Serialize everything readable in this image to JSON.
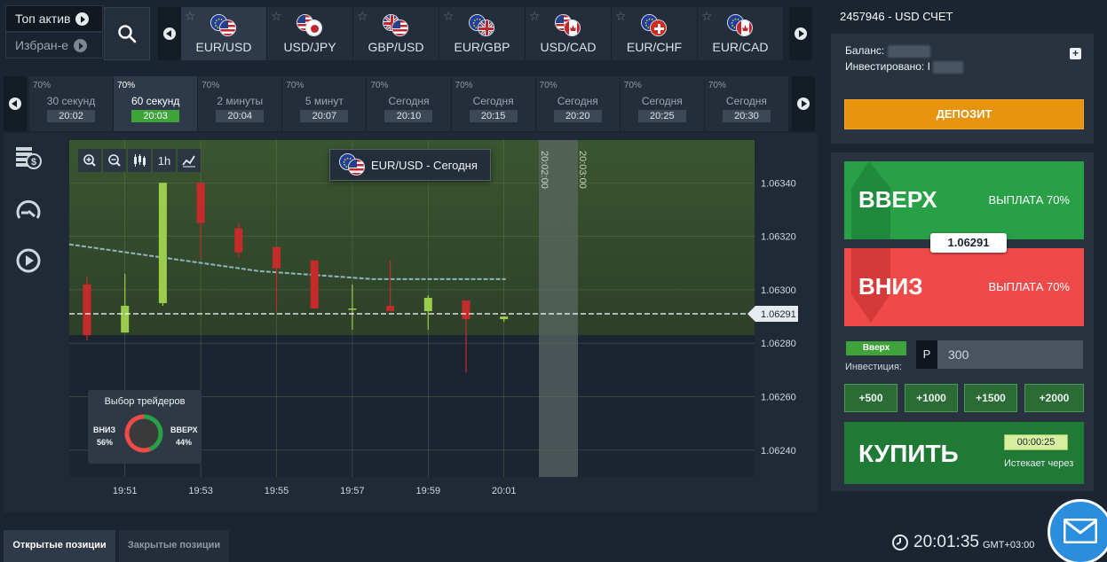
{
  "top_left": {
    "top_assets_label": "Топ актив",
    "favorites_label": "Избран-е"
  },
  "assets": [
    {
      "name": "EUR/USD",
      "flag_a": "eu",
      "flag_b": "us",
      "active": true
    },
    {
      "name": "USD/JPY",
      "flag_a": "us",
      "flag_b": "jp",
      "active": false
    },
    {
      "name": "GBP/USD",
      "flag_a": "gb",
      "flag_b": "us",
      "active": false
    },
    {
      "name": "EUR/GBP",
      "flag_a": "eu",
      "flag_b": "gb",
      "active": false
    },
    {
      "name": "USD/CAD",
      "flag_a": "us",
      "flag_b": "ca",
      "active": false
    },
    {
      "name": "EUR/CHF",
      "flag_a": "eu",
      "flag_b": "ch",
      "active": false
    },
    {
      "name": "EUR/CAD",
      "flag_a": "eu",
      "flag_b": "ca",
      "active": false
    }
  ],
  "expiries": [
    {
      "pct": "70%",
      "label": "30 секунд",
      "time": "20:02",
      "active": false
    },
    {
      "pct": "70%",
      "label": "60 секунд",
      "time": "20:03",
      "active": true
    },
    {
      "pct": "70%",
      "label": "2 минуты",
      "time": "20:04",
      "active": false
    },
    {
      "pct": "70%",
      "label": "5 минут",
      "time": "20:07",
      "active": false
    },
    {
      "pct": "70%",
      "label": "Сегодня",
      "time": "20:10",
      "active": false
    },
    {
      "pct": "70%",
      "label": "Сегодня",
      "time": "20:15",
      "active": false
    },
    {
      "pct": "70%",
      "label": "Сегодня",
      "time": "20:20",
      "active": false
    },
    {
      "pct": "70%",
      "label": "Сегодня",
      "time": "20:25",
      "active": false
    },
    {
      "pct": "70%",
      "label": "Сегодня",
      "time": "20:30",
      "active": false
    }
  ],
  "chart": {
    "asset_badge": "EUR/USD - Сегодня",
    "toolbar": [
      "zoom-in-icon",
      "zoom-out-icon",
      "candles-icon",
      "1h",
      "line-chart-icon"
    ],
    "timeframe_label": "1h",
    "current_price": "1.06291",
    "deadline_labels": [
      "20:02:00",
      "20:03:00"
    ],
    "colors": {
      "bull": "#9ccc4e",
      "bear": "#c62b2b",
      "area_top": "#3d5a2c",
      "grid": "#6b8a5a"
    },
    "traders_widget": {
      "title": "Выбор трейдеров",
      "down_label": "ВНИЗ",
      "down_pct": "56%",
      "up_label": "ВВЕРХ",
      "up_pct": "44%",
      "down_fraction": 0.56,
      "up_fraction": 0.44
    }
  },
  "chart_data": {
    "type": "candlestick",
    "title": "EUR/USD - Сегодня",
    "xlabel": "",
    "ylabel": "",
    "x_ticks": [
      "19:51",
      "19:53",
      "19:55",
      "19:57",
      "19:59",
      "20:01"
    ],
    "y_ticks": [
      "1.06340",
      "1.06320",
      "1.06300",
      "1.06280",
      "1.06260",
      "1.06240"
    ],
    "ylim": [
      1.0623,
      1.06356
    ],
    "y_tick_values": [
      1.0634,
      1.0632,
      1.063,
      1.0628,
      1.0626,
      1.0624
    ],
    "x_tick_index": [
      1,
      3,
      5,
      7,
      9,
      11
    ],
    "candles": [
      {
        "open": 1.06302,
        "close": 1.06283,
        "high": 1.06305,
        "low": 1.06281
      },
      {
        "open": 1.06284,
        "close": 1.06294,
        "high": 1.06306,
        "low": 1.06284
      },
      {
        "open": 1.06295,
        "close": 1.0634,
        "high": 1.0634,
        "low": 1.06294
      },
      {
        "open": 1.0634,
        "close": 1.06325,
        "high": 1.0634,
        "low": 1.06312
      },
      {
        "open": 1.06323,
        "close": 1.06314,
        "high": 1.06325,
        "low": 1.06312
      },
      {
        "open": 1.06316,
        "close": 1.06308,
        "high": 1.06316,
        "low": 1.06292
      },
      {
        "open": 1.06311,
        "close": 1.06293,
        "high": 1.06311,
        "low": 1.06293
      },
      {
        "open": 1.06293,
        "close": 1.06293,
        "high": 1.06302,
        "low": 1.06285
      },
      {
        "open": 1.06294,
        "close": 1.06292,
        "high": 1.06311,
        "low": 1.06292
      },
      {
        "open": 1.06292,
        "close": 1.06297,
        "high": 1.06298,
        "low": 1.06285
      },
      {
        "open": 1.06296,
        "close": 1.06289,
        "high": 1.06296,
        "low": 1.06269
      },
      {
        "open": 1.06289,
        "close": 1.0629,
        "high": 1.0629,
        "low": 1.06288
      }
    ],
    "moving_average": [
      1.06317,
      1.06315,
      1.06313,
      1.06311,
      1.06309,
      1.06307,
      1.06306,
      1.06305,
      1.06304,
      1.06304,
      1.06304,
      1.06304
    ],
    "current_price": 1.06291
  },
  "account": {
    "title": "2457946 - USD СЧЕТ",
    "balance_label": "Баланс:",
    "invested_label": "Инвестировано:",
    "invested_prefix": "I",
    "deposit_label": "ДЕПОЗИТ",
    "plus_label": "+"
  },
  "trade": {
    "up_label": "ВВЕРХ",
    "up_payout": "ВЫПЛАТА 70%",
    "down_label": "ВНИЗ",
    "down_payout": "ВЫПЛАТА 70%",
    "price": "1.06291",
    "mode_badge": "Вверх",
    "investment_label": "Инвестиция:",
    "currency_prefix": "P",
    "amount": "300",
    "quick_amounts": [
      "+500",
      "+1000",
      "+1500",
      "+2000"
    ],
    "buy_label": "КУПИТЬ",
    "timer": "00:00:25",
    "expires_label": "Истекает через",
    "colors": {
      "up": "#27a046",
      "down": "#ef4a4a",
      "buy": "#1f7a35",
      "deposit": "#e8930e"
    }
  },
  "bottom": {
    "open_positions": "Открытые позиции",
    "closed_positions": "Закрытые позиции",
    "clock_time": "20:01:35",
    "clock_zone": "GMT+03:00"
  }
}
